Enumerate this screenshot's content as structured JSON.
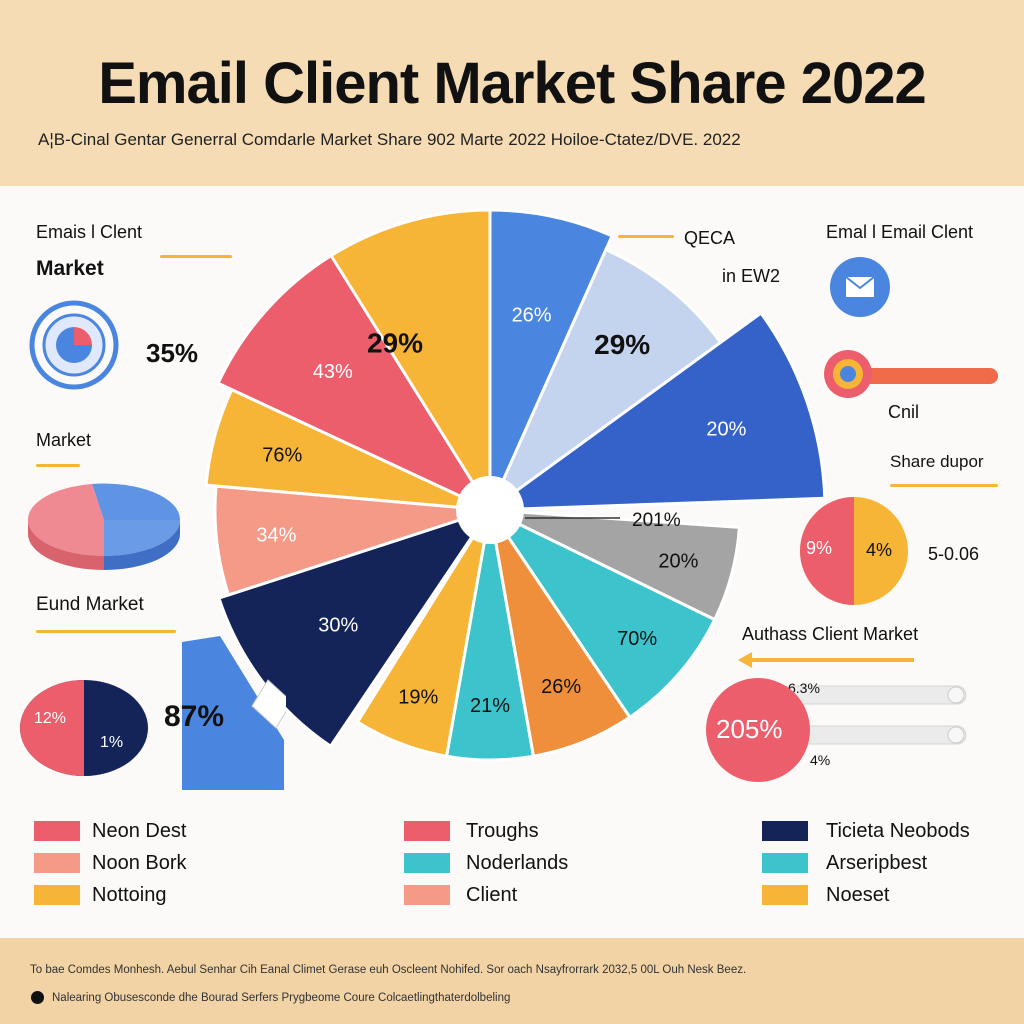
{
  "header": {
    "title": "Email Client Market Share 2022",
    "subtitle": "A¦B-Cinal Gentar Generral Comdarle Market Share  902 Marte 2022 Hoiloe-Ctatez/DVE. 2022"
  },
  "chart_data": {
    "type": "pie",
    "title": "Email Client Market Share 2022",
    "slices": [
      {
        "label": "29%",
        "value": 29,
        "color": "#f7b538"
      },
      {
        "label": "26%",
        "value": 26,
        "color": "#4a86e0"
      },
      {
        "label": "29%",
        "value": 29,
        "color": "#c4d3ee"
      },
      {
        "label": "20%",
        "value": 20,
        "color": "#3562c8"
      },
      {
        "label": "20%",
        "value": 20,
        "color": "#a4a4a4"
      },
      {
        "label": "70%",
        "value": 70,
        "color": "#3cc3cb"
      },
      {
        "label": "26%",
        "value": 26,
        "color": "#ef8f3c"
      },
      {
        "label": "21%",
        "value": 21,
        "color": "#3cc3cb"
      },
      {
        "label": "19%",
        "value": 19,
        "color": "#f7b538"
      },
      {
        "label": "30%",
        "value": 30,
        "color": "#142459"
      },
      {
        "label": "34%",
        "value": 34,
        "color": "#f49a87"
      },
      {
        "label": "76%",
        "value": 76,
        "color": "#f7b538"
      },
      {
        "label": "43%",
        "value": 43,
        "color": "#ec5e6b"
      }
    ],
    "slice_labels": [
      "29%",
      "26%",
      "29%",
      "20%",
      "20%",
      "70%",
      "26%",
      "21%",
      "19%",
      "30%",
      "34%",
      "76%",
      "43%"
    ],
    "center_callout": "201%",
    "legend": [
      {
        "label": "Neon Dest",
        "color": "#ec5e6b"
      },
      {
        "label": "Noon Bork",
        "color": "#f49a87"
      },
      {
        "label": "Nottoing",
        "color": "#f7b538"
      },
      {
        "label": "Troughs",
        "color": "#ec5e6b"
      },
      {
        "label": "Noderlands",
        "color": "#3cc3cb"
      },
      {
        "label": "Client",
        "color": "#f49a87"
      },
      {
        "label": "Ticieta Neobods",
        "color": "#142459"
      },
      {
        "label": "Arseripbest",
        "color": "#3cc3cb"
      },
      {
        "label": "Noeset",
        "color": "#f7b538"
      }
    ]
  },
  "left": {
    "label1": "Emais l Clent",
    "label2": "Market",
    "pct1": "35%",
    "label3": "Market",
    "label4": "Eund Market",
    "pie_a": "12%",
    "pie_b": "1%",
    "pct2": "87%"
  },
  "right": {
    "top_label1": "QECA",
    "top_label2": "in EW2",
    "label1": "Emal l Email Clent",
    "label2": "Cnil",
    "label3": "Share dupor",
    "mini_a": "9%",
    "mini_b": "4%",
    "mini_note": "5-0.06",
    "label4": "Authass Client Market",
    "big_pct": "205%",
    "bar_label1": "6.3%",
    "bar_label2": "4%"
  },
  "footer": {
    "line1": "To bae Comdes Monhesh. Aebul Senhar Cih Eanal Climet Gerase euh Oscleent Nohifed. Sor oach Nsayfrorrark 2032,5 00L Ouh Nesk Beez.",
    "line2": "Nalearing Obusesconde dhe Bourad Serfers Prygbeome Coure Colcaetlingthaterdolbeling"
  },
  "colors": {
    "header_bg": "#f6dcb4",
    "footer_bg": "#f1d3a6",
    "red": "#ec5e6b",
    "salmon": "#f49a87",
    "yellow": "#f7b538",
    "navy": "#142459",
    "teal": "#3cc3cb",
    "blue": "#4a86e0",
    "orange": "#ef8f3c"
  }
}
